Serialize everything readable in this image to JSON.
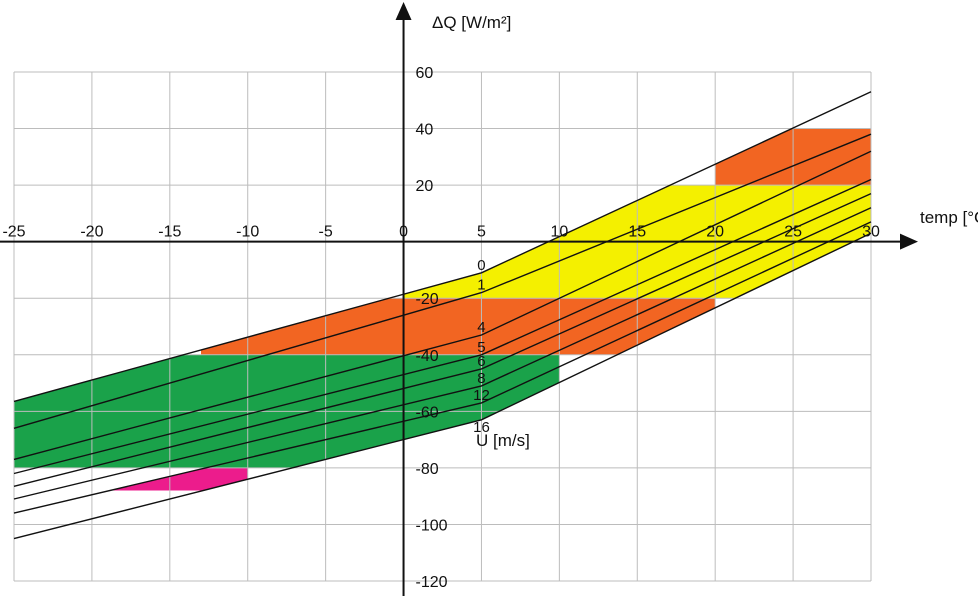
{
  "chart_data": {
    "type": "line",
    "xlabel": "temp [°C]",
    "ylabel": "ΔQ [W/m²]",
    "xlim": [
      -25,
      30
    ],
    "ylim": [
      -120,
      60
    ],
    "grid": true,
    "x_ticks": [
      -25,
      -20,
      -15,
      -10,
      -5,
      0,
      5,
      10,
      15,
      20,
      25,
      30
    ],
    "y_ticks": [
      60,
      40,
      20,
      -20,
      -40,
      -60,
      -80,
      -100,
      -120
    ],
    "x_tick_labels": [
      "-25",
      "-20",
      "-15",
      "-10",
      "-5",
      "0",
      "5",
      "10",
      "15",
      "20",
      "25",
      "30"
    ],
    "y_tick_labels": [
      "60",
      "40",
      "20",
      "-20",
      "-40",
      "-60",
      "-80",
      "-100",
      "-120"
    ],
    "series_label_title": "U [m/s]",
    "series": [
      {
        "name": "0",
        "x": [
          -25,
          5,
          30
        ],
        "y": [
          -56.5,
          -11,
          53
        ]
      },
      {
        "name": "1",
        "x": [
          -25,
          5,
          30
        ],
        "y": [
          -66,
          -18,
          38
        ]
      },
      {
        "name": "4",
        "x": [
          -25,
          5,
          30
        ],
        "y": [
          -77,
          -33,
          32
        ]
      },
      {
        "name": "5",
        "x": [
          -25,
          5,
          30
        ],
        "y": [
          -82,
          -40,
          22
        ]
      },
      {
        "name": "6",
        "x": [
          -25,
          5,
          30
        ],
        "y": [
          -86.5,
          -45,
          17
        ]
      },
      {
        "name": "8",
        "x": [
          -25,
          5,
          30
        ],
        "y": [
          -91,
          -51,
          12
        ]
      },
      {
        "name": "12",
        "x": [
          -25,
          5,
          30
        ],
        "y": [
          -96,
          -57,
          7
        ]
      },
      {
        "name": "16",
        "x": [
          -25,
          5,
          30
        ],
        "y": [
          -105,
          -63,
          3
        ]
      }
    ],
    "bands": [
      {
        "color": "#ec1c8c",
        "x_range": [
          -25,
          -10
        ],
        "upper": "12",
        "lower": "16",
        "y_range": [
          -88,
          -78
        ]
      },
      {
        "color": "#1aa24a",
        "x_range": [
          -25,
          10
        ],
        "upper": "0",
        "lower": "16",
        "y_range": [
          -80,
          -40
        ]
      },
      {
        "color": "#f26522",
        "x_range": [
          -13,
          20
        ],
        "upper": "0",
        "lower": "16",
        "y_range": [
          -40,
          -20
        ]
      },
      {
        "color": "#f4f000",
        "x_range": [
          0,
          30
        ],
        "upper": "0",
        "lower": "16",
        "y_range": [
          -20,
          20
        ]
      },
      {
        "color": "#f26522",
        "x_range": [
          20,
          30
        ],
        "upper": "0",
        "lower": "16",
        "y_range": [
          20,
          40
        ]
      }
    ]
  }
}
